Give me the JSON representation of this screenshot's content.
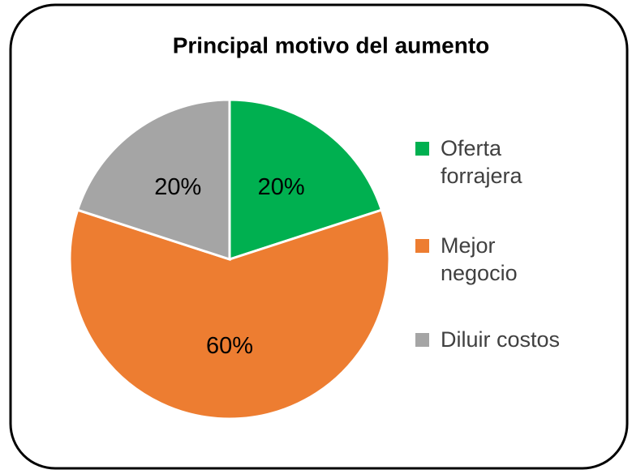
{
  "chart_data": {
    "type": "pie",
    "title": "Principal motivo del aumento",
    "categories": [
      "Oferta forrajera",
      "Mejor negocio",
      "Diluir costos"
    ],
    "values": [
      20,
      60,
      20
    ],
    "value_labels": [
      "20%",
      "60%",
      "20%"
    ],
    "colors": [
      "#00b050",
      "#ed7d31",
      "#a5a5a5"
    ],
    "legend": "right"
  }
}
